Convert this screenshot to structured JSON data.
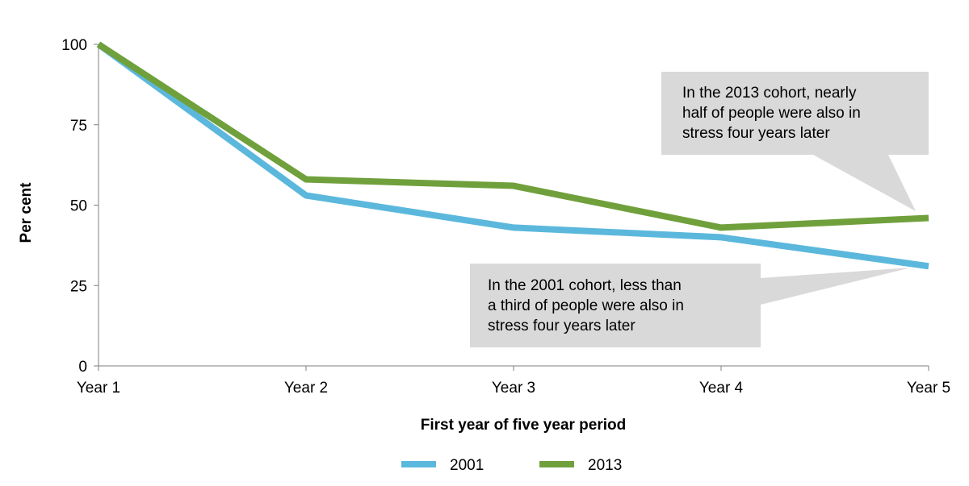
{
  "chart_data": {
    "type": "line",
    "title": "",
    "xlabel": "First year of five year period",
    "ylabel": "Per cent",
    "categories": [
      "Year 1",
      "Year 2",
      "Year 3",
      "Year 4",
      "Year 5"
    ],
    "ylim": [
      0,
      100
    ],
    "yticks": [
      0,
      25,
      50,
      75,
      100
    ],
    "grid": false,
    "legend_position": "bottom",
    "series": [
      {
        "name": "2001",
        "color": "#5bb8dc",
        "values": [
          100,
          53,
          43,
          40,
          31
        ]
      },
      {
        "name": "2013",
        "color": "#70a03c",
        "values": [
          100,
          58,
          56,
          43,
          46
        ]
      }
    ],
    "annotations": [
      {
        "series": "2013",
        "category": "Year 5",
        "lines": [
          "In the 2013 cohort, nearly",
          "half of people were also in",
          "stress four years later"
        ]
      },
      {
        "series": "2001",
        "category": "Year 5",
        "lines": [
          "In the 2001 cohort, less than",
          "a third of people were also in",
          "stress four years later"
        ]
      }
    ]
  }
}
